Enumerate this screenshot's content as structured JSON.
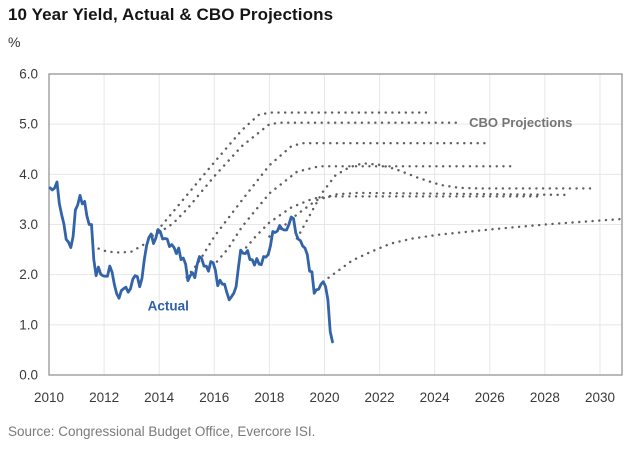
{
  "header": {
    "title": "10 Year Yield, Actual & CBO Projections",
    "unit_label": "%"
  },
  "footer": {
    "source": "Source: Congressional Budget Office, Evercore ISI."
  },
  "chart_data": {
    "type": "line",
    "title": "10 Year Yield, Actual & CBO Projections",
    "xlabel": "",
    "ylabel": "%",
    "xlim": [
      2010,
      2030.8
    ],
    "ylim": [
      0,
      6
    ],
    "x_ticks": [
      2010,
      2012,
      2014,
      2016,
      2018,
      2020,
      2022,
      2024,
      2026,
      2028,
      2030
    ],
    "x_tick_labels": [
      "2010",
      "2012",
      "2014",
      "2016",
      "2018",
      "2020",
      "2022",
      "2024",
      "2026",
      "2028",
      "2030"
    ],
    "y_ticks": [
      0,
      1,
      2,
      3,
      4,
      5,
      6
    ],
    "y_tick_labels": [
      "0.0",
      "1.0",
      "2.0",
      "3.0",
      "4.0",
      "5.0",
      "6.0"
    ],
    "grid": true,
    "legend_position": "none",
    "colors": {
      "actual_line": "#3363a8",
      "actual_label": "#2e62a6",
      "projection_dots": "#5f5f5f",
      "projection_label": "#757575",
      "gridline": "#e7e7e7",
      "plot_border": "#9c9c9c",
      "tick_text": "#3a3a3a"
    },
    "annotations": {
      "actual_label": {
        "text": "Actual",
        "x": 2013.58,
        "y": 1.38
      },
      "cbo_label": {
        "text": "CBO Projections",
        "x": 2025.25,
        "y": 5.03
      }
    },
    "series": {
      "actual": {
        "name": "Actual",
        "style": "solid",
        "start_year": 2010,
        "frequency": "monthly",
        "values": [
          3.73,
          3.69,
          3.73,
          3.85,
          3.42,
          3.2,
          3.01,
          2.7,
          2.65,
          2.54,
          2.76,
          3.29,
          3.39,
          3.58,
          3.41,
          3.46,
          3.17,
          3.0,
          3.0,
          2.3,
          1.98,
          2.15,
          2.01,
          1.98,
          1.97,
          1.97,
          2.17,
          2.05,
          1.8,
          1.62,
          1.53,
          1.68,
          1.72,
          1.75,
          1.65,
          1.72,
          1.91,
          1.98,
          1.96,
          1.76,
          1.93,
          2.3,
          2.58,
          2.74,
          2.81,
          2.62,
          2.72,
          2.9,
          2.86,
          2.71,
          2.72,
          2.71,
          2.56,
          2.6,
          2.54,
          2.42,
          2.53,
          2.3,
          2.33,
          2.21,
          1.88,
          1.98,
          2.04,
          1.94,
          2.2,
          2.36,
          2.32,
          2.17,
          2.17,
          2.07,
          2.26,
          2.24,
          2.09,
          1.78,
          1.89,
          1.81,
          1.81,
          1.64,
          1.5,
          1.56,
          1.63,
          1.76,
          2.14,
          2.49,
          2.43,
          2.42,
          2.48,
          2.3,
          2.3,
          2.19,
          2.32,
          2.21,
          2.2,
          2.36,
          2.35,
          2.4,
          2.58,
          2.86,
          2.84,
          2.87,
          2.98,
          2.91,
          2.89,
          2.89,
          3.0,
          3.15,
          3.12,
          2.83,
          2.71,
          2.68,
          2.57,
          2.53,
          2.4,
          2.07,
          2.06,
          1.63,
          1.7,
          1.71,
          1.81,
          1.86,
          1.76,
          1.5,
          0.87,
          0.66
        ]
      },
      "projections": [
        {
          "name": "CBO projection 1",
          "style": "dotted",
          "points": [
            [
              2011.8,
              2.52
            ],
            [
              2012.1,
              2.46
            ],
            [
              2012.6,
              2.44
            ],
            [
              2013.0,
              2.46
            ],
            [
              2013.5,
              2.62
            ],
            [
              2014.0,
              2.92
            ],
            [
              2015.0,
              3.58
            ],
            [
              2016.0,
              4.24
            ],
            [
              2017.0,
              4.88
            ],
            [
              2017.6,
              5.18
            ],
            [
              2018.0,
              5.23
            ],
            [
              2023.85,
              5.23
            ]
          ]
        },
        {
          "name": "CBO projection 2",
          "style": "dotted",
          "points": [
            [
              2014.0,
              2.84
            ],
            [
              2014.5,
              3.02
            ],
            [
              2015.0,
              3.3
            ],
            [
              2016.0,
              3.96
            ],
            [
              2017.0,
              4.56
            ],
            [
              2018.0,
              5.0
            ],
            [
              2018.4,
              5.03
            ],
            [
              2024.8,
              5.03
            ]
          ]
        },
        {
          "name": "CBO projection 3",
          "style": "dotted",
          "points": [
            [
              2015.0,
              1.95
            ],
            [
              2015.4,
              2.22
            ],
            [
              2016.0,
              2.76
            ],
            [
              2017.0,
              3.48
            ],
            [
              2018.0,
              4.18
            ],
            [
              2018.8,
              4.56
            ],
            [
              2019.2,
              4.62
            ],
            [
              2025.9,
              4.62
            ]
          ]
        },
        {
          "name": "CBO projection 4",
          "style": "dotted",
          "points": [
            [
              2016.1,
              2.26
            ],
            [
              2016.5,
              2.52
            ],
            [
              2017.0,
              2.95
            ],
            [
              2018.0,
              3.62
            ],
            [
              2019.0,
              4.05
            ],
            [
              2019.8,
              4.16
            ],
            [
              2026.9,
              4.16
            ]
          ]
        },
        {
          "name": "CBO projection 5",
          "style": "dotted",
          "points": [
            [
              2017.0,
              2.44
            ],
            [
              2017.5,
              2.76
            ],
            [
              2018.0,
              3.04
            ],
            [
              2018.8,
              3.34
            ],
            [
              2019.6,
              3.52
            ],
            [
              2020.3,
              3.56
            ],
            [
              2027.8,
              3.56
            ]
          ]
        },
        {
          "name": "CBO projection 6",
          "style": "dotted",
          "points": [
            [
              2018.0,
              2.76
            ],
            [
              2018.5,
              2.96
            ],
            [
              2019.0,
              3.2
            ],
            [
              2019.7,
              3.48
            ],
            [
              2020.4,
              3.6
            ],
            [
              2021.2,
              3.63
            ],
            [
              2028.8,
              3.59
            ]
          ]
        },
        {
          "name": "CBO projection 7",
          "style": "dotted",
          "points": [
            [
              2019.0,
              2.72
            ],
            [
              2019.4,
              3.12
            ],
            [
              2019.9,
              3.62
            ],
            [
              2020.4,
              3.98
            ],
            [
              2020.9,
              4.14
            ],
            [
              2021.4,
              4.22
            ],
            [
              2022.0,
              4.19
            ],
            [
              2022.6,
              4.1
            ],
            [
              2023.4,
              3.93
            ],
            [
              2024.2,
              3.79
            ],
            [
              2024.9,
              3.73
            ],
            [
              2025.6,
              3.72
            ],
            [
              2029.7,
              3.72
            ]
          ]
        },
        {
          "name": "CBO projection 8",
          "style": "dotted",
          "points": [
            [
              2019.95,
              1.86
            ],
            [
              2020.4,
              2.04
            ],
            [
              2021.0,
              2.28
            ],
            [
              2021.7,
              2.46
            ],
            [
              2022.4,
              2.62
            ],
            [
              2023.2,
              2.72
            ],
            [
              2024.2,
              2.8
            ],
            [
              2026.0,
              2.9
            ],
            [
              2028.0,
              3.0
            ],
            [
              2030.0,
              3.08
            ],
            [
              2030.8,
              3.11
            ]
          ]
        }
      ]
    }
  }
}
